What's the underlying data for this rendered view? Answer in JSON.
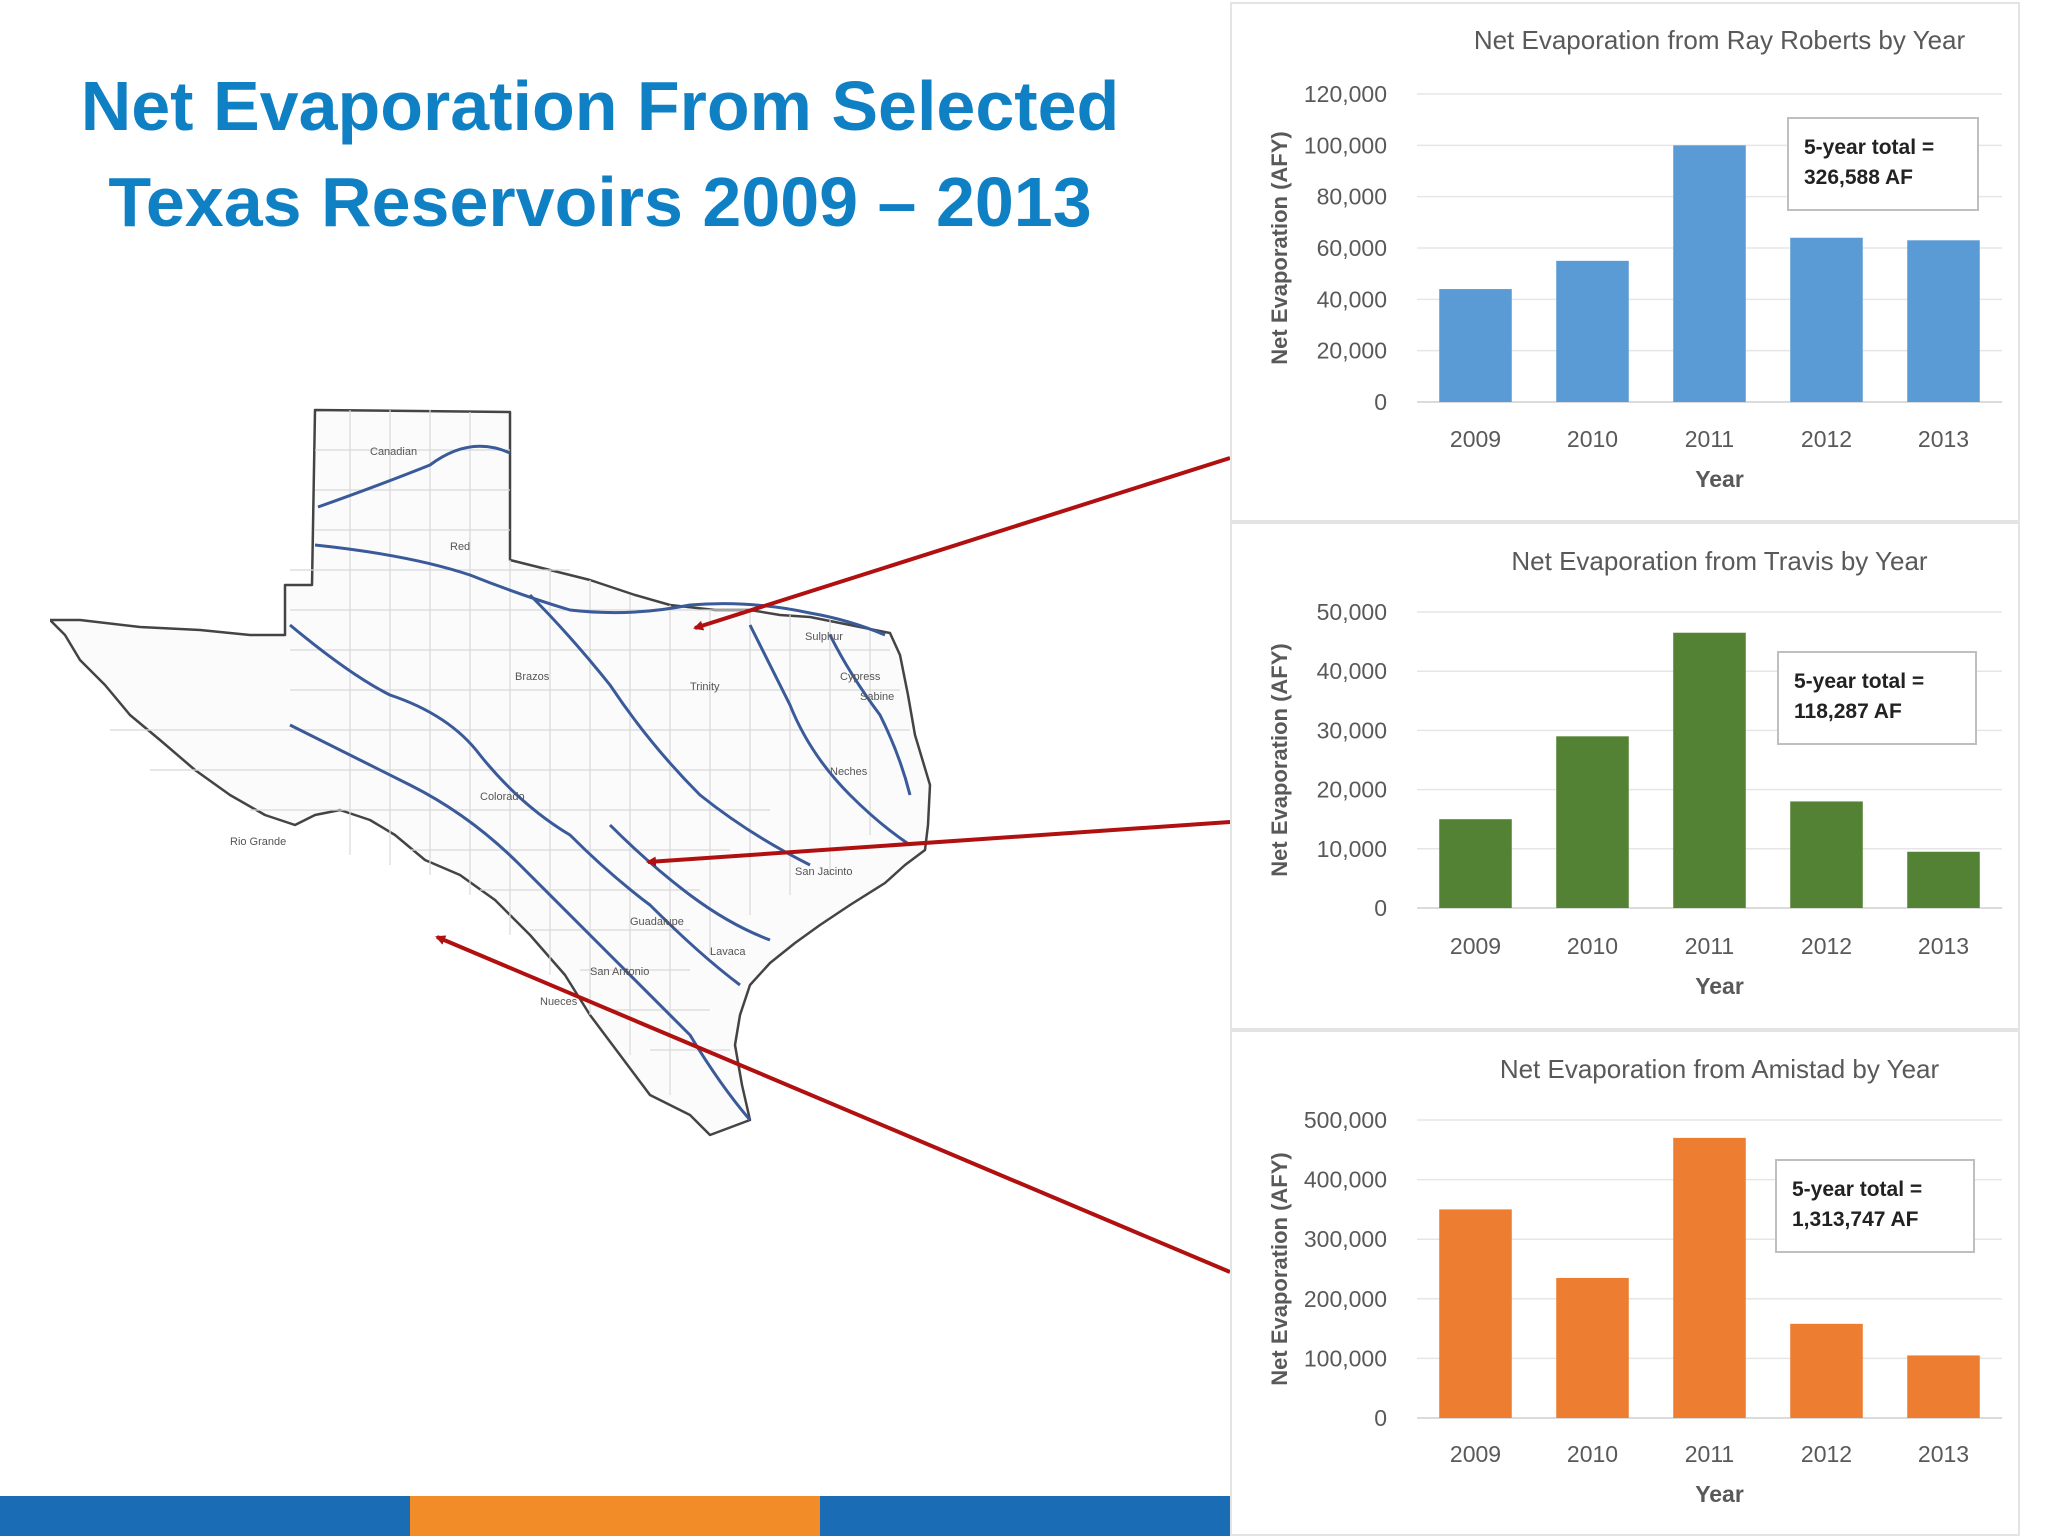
{
  "slide": {
    "title_line1": "Net Evaporation From Selected",
    "title_line2": "Texas Reservoirs 2009 – 2013"
  },
  "map": {
    "basin_labels": [
      "Canadian",
      "Red",
      "Sulphur",
      "Cypress",
      "Brazos",
      "Trinity",
      "Sabine",
      "Neches",
      "Colorado",
      "Rio Grande",
      "San Jacinto",
      "Lavaca",
      "Guadalupe",
      "San Antonio",
      "Nueces"
    ]
  },
  "colors": {
    "title": "#1080c4",
    "arrow": "#b01010",
    "ray_roberts_bar": "#5b9bd5",
    "travis_bar": "#548235",
    "amistad_bar": "#ed7d31",
    "footer_blue": "#1a6db5",
    "footer_orange": "#f28c28"
  },
  "chart_data": [
    {
      "type": "bar",
      "title": "Net Evaporation from Ray Roberts by Year",
      "xlabel": "Year",
      "ylabel": "Net Evaporation (AFY)",
      "categories": [
        "2009",
        "2010",
        "2011",
        "2012",
        "2013"
      ],
      "values": [
        44000,
        55000,
        100000,
        64000,
        63000
      ],
      "ylim": [
        0,
        120000
      ],
      "yticks": [
        "0",
        "20,000",
        "40,000",
        "60,000",
        "80,000",
        "100,000",
        "120,000"
      ],
      "grid": true,
      "annotation_line1": "5-year total =",
      "annotation_line2": "326,588 AF",
      "color": "#5b9bd5"
    },
    {
      "type": "bar",
      "title": "Net Evaporation from Travis by Year",
      "xlabel": "Year",
      "ylabel": "Net Evaporation (AFY)",
      "categories": [
        "2009",
        "2010",
        "2011",
        "2012",
        "2013"
      ],
      "values": [
        15000,
        29000,
        46500,
        18000,
        9500
      ],
      "ylim": [
        0,
        50000
      ],
      "yticks": [
        "0",
        "10,000",
        "20,000",
        "30,000",
        "40,000",
        "50,000"
      ],
      "grid": true,
      "annotation_line1": "5-year total =",
      "annotation_line2": "118,287 AF",
      "color": "#548235"
    },
    {
      "type": "bar",
      "title": "Net Evaporation from Amistad by Year",
      "xlabel": "Year",
      "ylabel": "Net Evaporation (AFY)",
      "categories": [
        "2009",
        "2010",
        "2011",
        "2012",
        "2013"
      ],
      "values": [
        350000,
        235000,
        470000,
        158000,
        105000
      ],
      "ylim": [
        0,
        500000
      ],
      "yticks": [
        "0",
        "100,000",
        "200,000",
        "300,000",
        "400,000",
        "500,000"
      ],
      "grid": true,
      "annotation_line1": "5-year total =",
      "annotation_line2": "1,313,747 AF",
      "color": "#ed7d31"
    }
  ]
}
